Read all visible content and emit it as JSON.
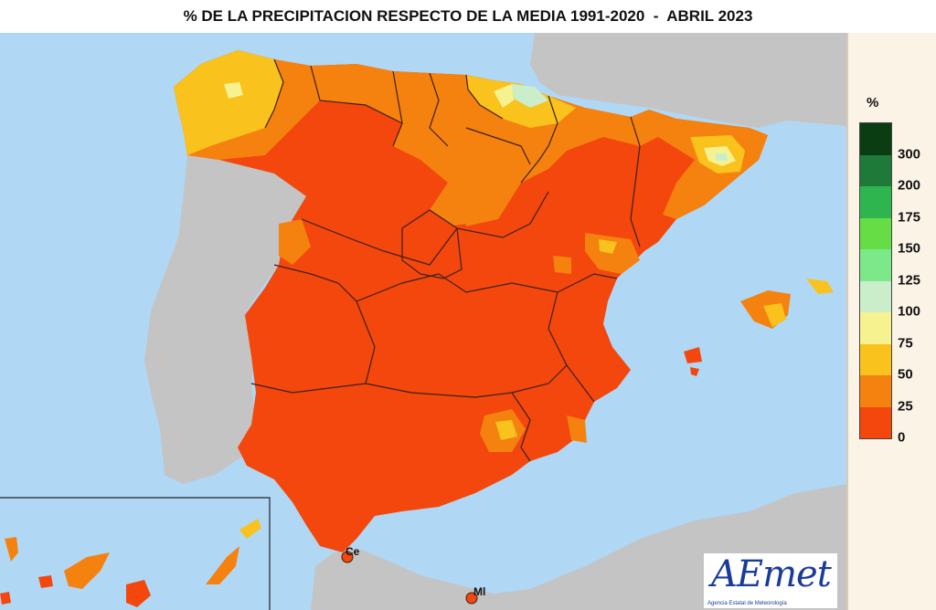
{
  "title": "% DE LA PRECIPITACION RESPECTO DE LA MEDIA 1991-2020  -  ABRIL 2023",
  "legend": {
    "unit": "%",
    "labels": [
      "300",
      "200",
      "175",
      "150",
      "125",
      "100",
      "75",
      "50",
      "25",
      "0"
    ],
    "colors": [
      "#0a3d12",
      "#1f7a3a",
      "#2fb550",
      "#66dd44",
      "#7ce88a",
      "#c9eec9",
      "#f7f290",
      "#f9c21c",
      "#f5820f",
      "#f3470e"
    ]
  },
  "markers": [
    {
      "label": "Ce"
    },
    {
      "label": "Ml"
    }
  ],
  "logo": {
    "text": "AEmet",
    "subtitle": "Agencia Estatal de Meteorología"
  },
  "colors": {
    "sea": "#b0d8f5",
    "land_other": "#c4c4c4",
    "range_0_25": "#f3470e",
    "range_25_50": "#f5820f",
    "range_50_75": "#f9c21c",
    "range_75_100": "#f7f290",
    "range_100_125": "#c9eec9"
  }
}
